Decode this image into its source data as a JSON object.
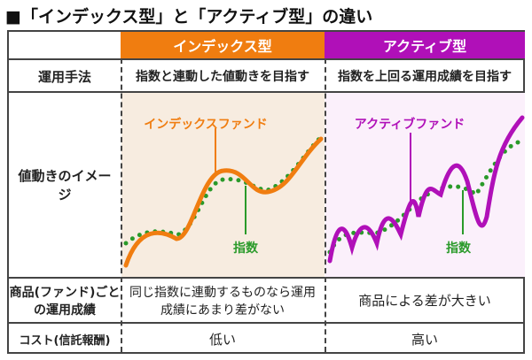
{
  "title": "■「インデックス型」と「アクティブ型」の違い",
  "columns": {
    "index": "インデックス型",
    "active": "アクティブ型"
  },
  "rows": {
    "method": {
      "label": "運用手法",
      "index": "指数と連動した値動きを目指す",
      "active": "指数を上回る運用成績を目指す"
    },
    "image": {
      "label": "値動きのイメージ",
      "index_fund": "インデックスファンド",
      "active_fund": "アクティブファンド",
      "benchmark": "指数"
    },
    "performance": {
      "label": "商品(ファンド)ごとの運用成績",
      "index": "同じ指数に連動するものなら運用成績にあまり差がない",
      "active": "商品による差が大きい"
    },
    "cost": {
      "label": "コスト(信託報酬)",
      "index": "低い",
      "active": "高い"
    }
  },
  "colors": {
    "index": "#f07d10",
    "active": "#b010b8",
    "benchmark": "#2a9a2a",
    "index_bg": "#f7ece0",
    "active_bg": "#fbf0fb"
  }
}
